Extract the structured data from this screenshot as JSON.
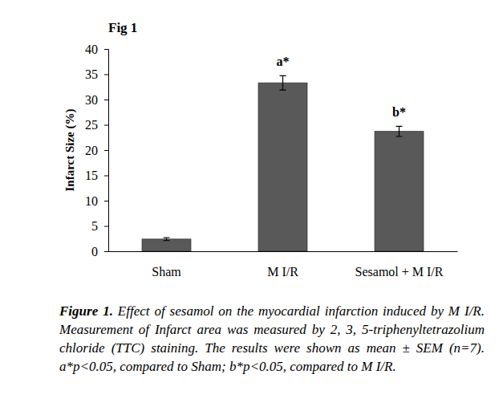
{
  "chart_data": {
    "type": "bar",
    "title": "Fig 1",
    "y_label": "Infarct Size (%)",
    "categories": [
      "Sham",
      "M I/R",
      "Sesamol + M I/R"
    ],
    "values": [
      2.4,
      33.3,
      23.7
    ],
    "errors": [
      0.3,
      1.4,
      1.0
    ],
    "annotations": [
      null,
      "a*",
      "b*"
    ],
    "color": "#595959",
    "ylim": [
      0,
      40
    ],
    "yticks": [
      0,
      5,
      10,
      15,
      20,
      25,
      30,
      35,
      40
    ],
    "grid": false,
    "caption_title": "Figure 1.",
    "caption": "Effect of sesamol on the myocardial infarction induced by M I/R. Measurement of Infarct area was measured by 2, 3, 5-triphenyltetrazolium chloride (TTC) staining. The results were shown as mean ± SEM (n=7). a*p<0.05, compared to Sham; b*p<0.05, compared to M I/R."
  }
}
